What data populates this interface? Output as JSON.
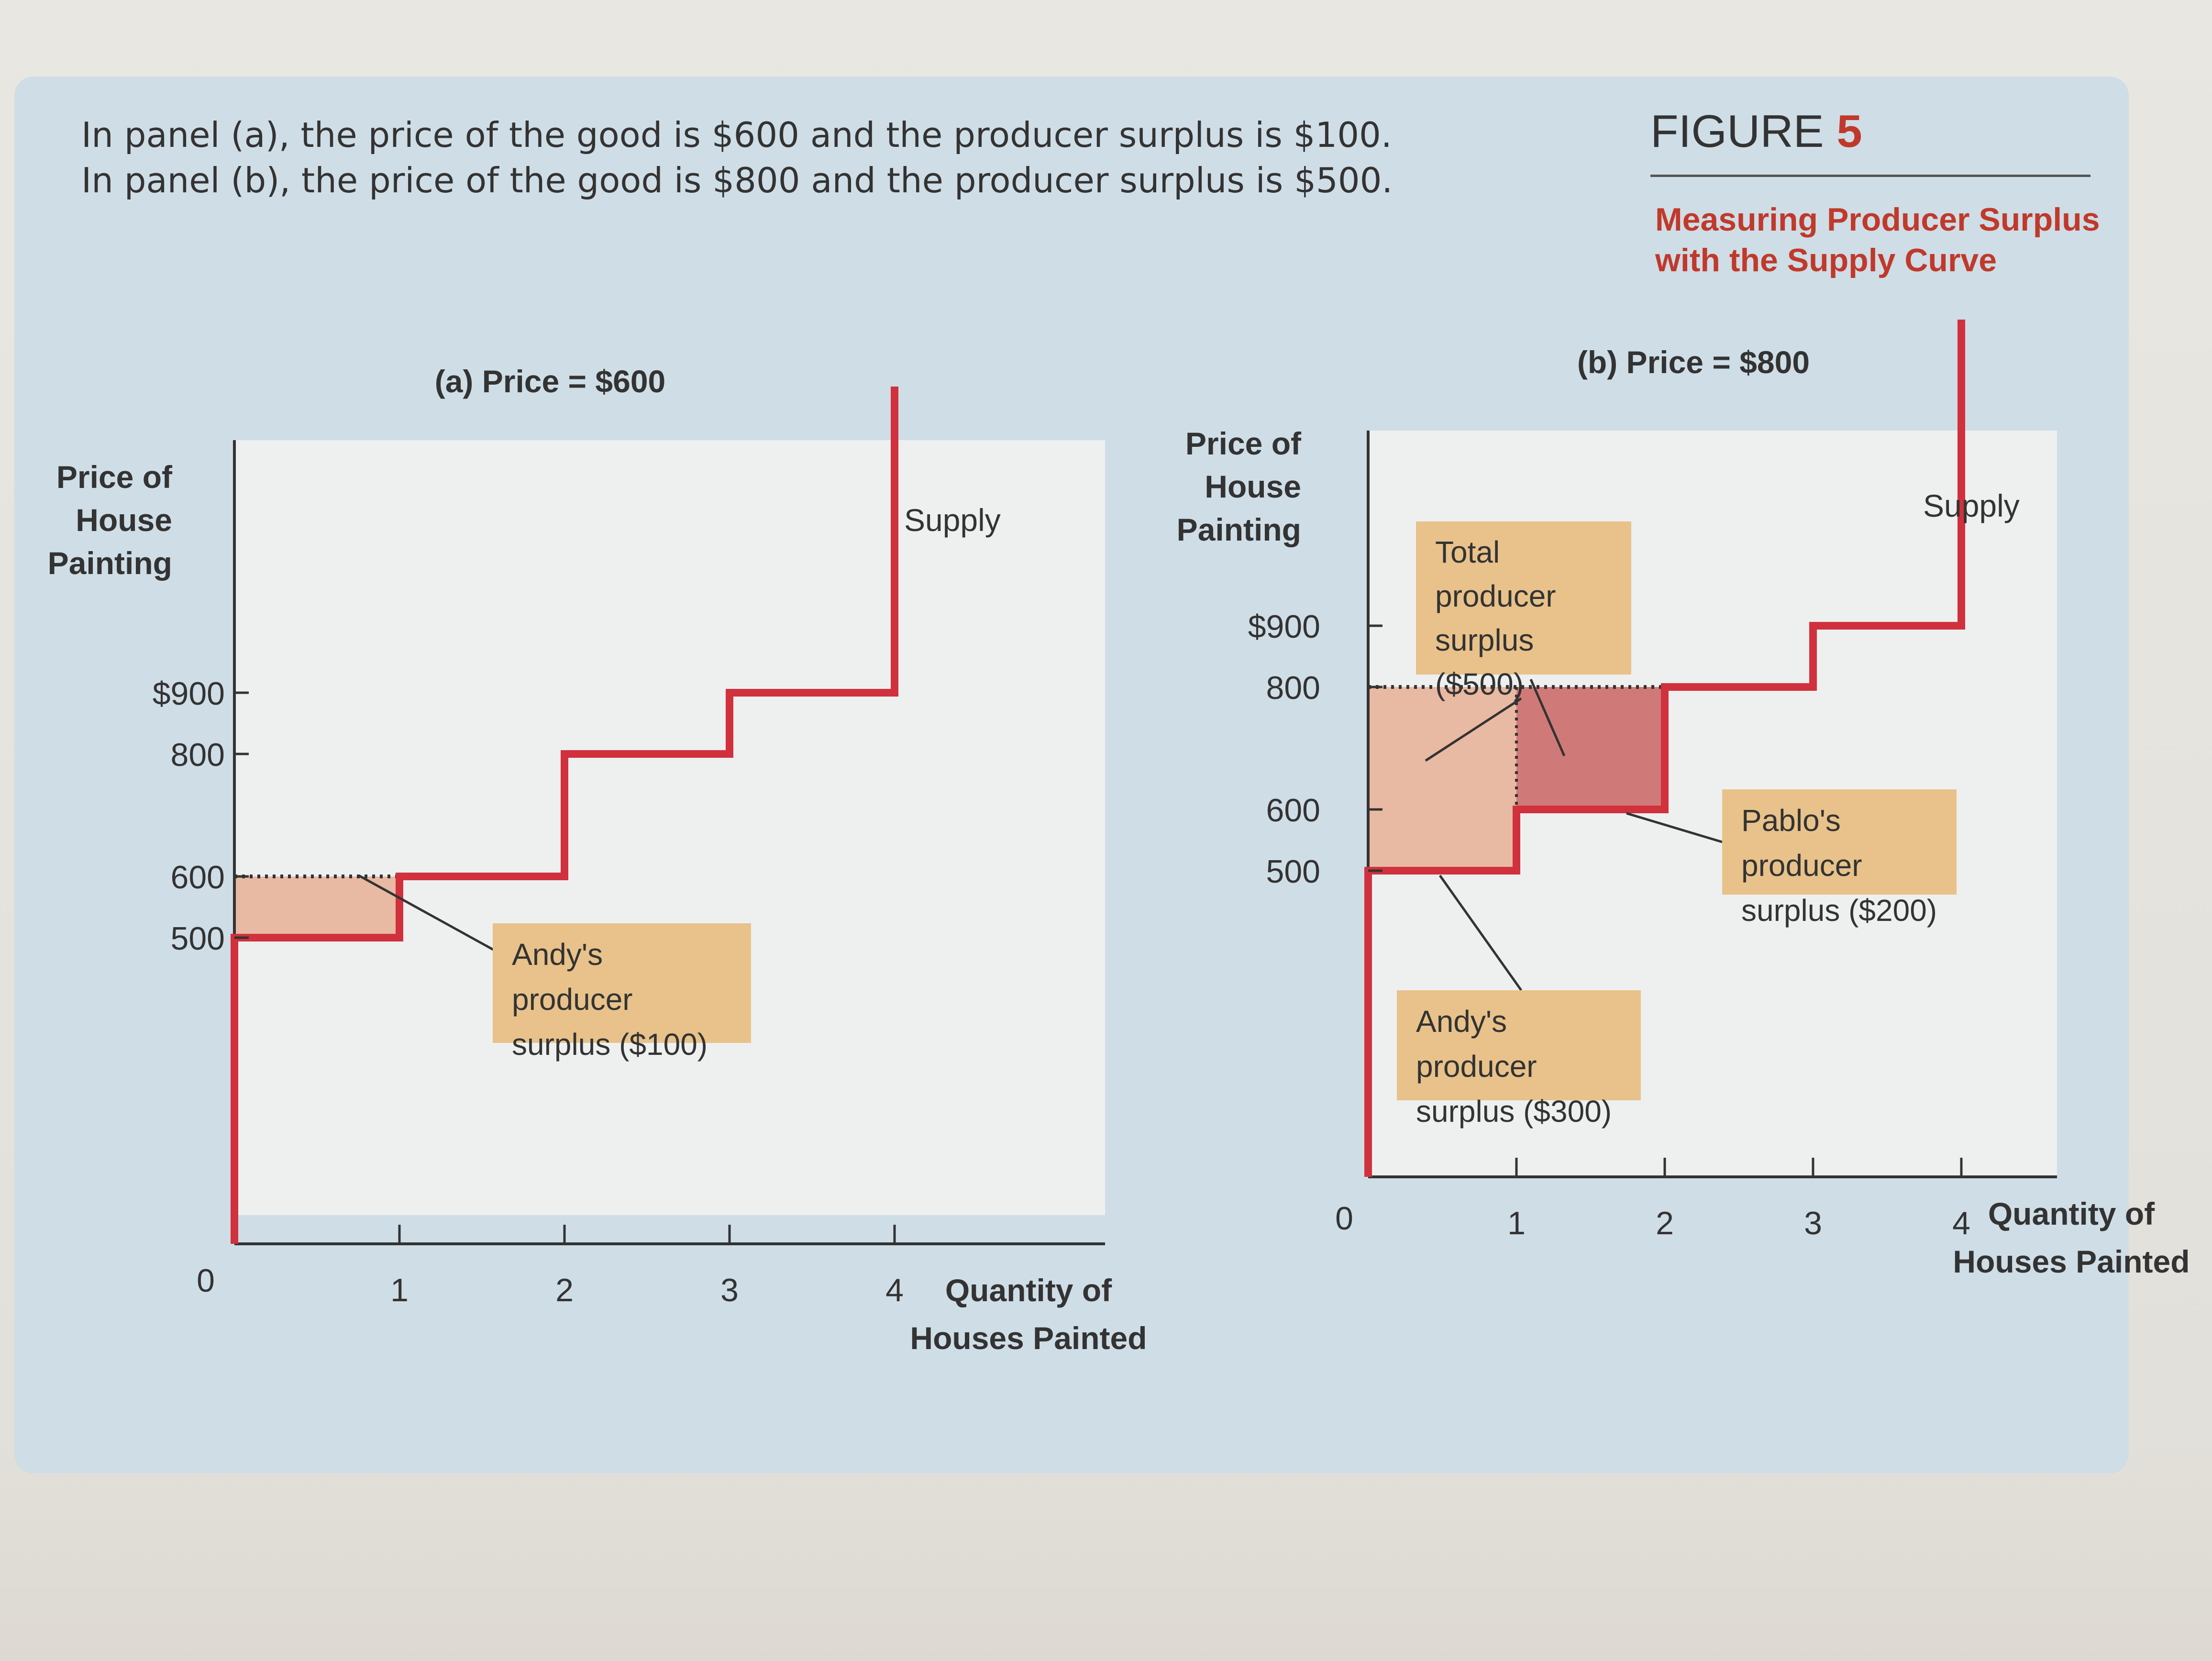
{
  "caption": {
    "line1": "In panel (a), the price of the good is $600 and the producer surplus is $100.",
    "line2": "In panel (b), the price of the good is $800 and the producer surplus is $500."
  },
  "figure": {
    "label": "FIGURE",
    "number": "5",
    "title_line1": "Measuring Producer Surplus",
    "title_line2": "with the Supply Curve"
  },
  "colors": {
    "supply_line": "#d0313d",
    "surplus_light": "#e8b9a3",
    "surplus_dark": "#cf7a78",
    "label_box": "#e8c28a",
    "panel_bg": "#cfdde6",
    "plot_bg": "#eef0f0"
  },
  "chart_data": [
    {
      "type": "line",
      "title": "(a) Price = $600",
      "xlabel": "Quantity of Houses Painted",
      "ylabel": "Price of House Painting",
      "x_ticks": [
        "0",
        "1",
        "2",
        "3",
        "4"
      ],
      "y_ticks": [
        "500",
        "600",
        "800",
        "$900"
      ],
      "y_tick_values": [
        500,
        600,
        800,
        900
      ],
      "xlim": [
        0,
        5
      ],
      "ylim": [
        0,
        1500
      ],
      "series": [
        {
          "name": "Supply",
          "steps": [
            {
              "x_from": 0,
              "x_to": 1,
              "price": 500
            },
            {
              "x_from": 1,
              "x_to": 2,
              "price": 600
            },
            {
              "x_from": 2,
              "x_to": 3,
              "price": 800
            },
            {
              "x_from": 3,
              "x_to": 4,
              "price": 900
            }
          ]
        }
      ],
      "price_line": 600,
      "surplus_regions": [
        {
          "x_from": 0,
          "x_to": 1,
          "y_from": 500,
          "y_to": 600,
          "shade": "light"
        }
      ],
      "annotations": [
        {
          "line1": "Andy's producer",
          "line2": "surplus ($100)"
        }
      ]
    },
    {
      "type": "line",
      "title": "(b) Price = $800",
      "xlabel": "Quantity of Houses Painted",
      "ylabel": "Price of House Painting",
      "x_ticks": [
        "0",
        "1",
        "2",
        "3",
        "4"
      ],
      "y_ticks": [
        "500",
        "600",
        "800",
        "$900"
      ],
      "y_tick_values": [
        500,
        600,
        800,
        900
      ],
      "xlim": [
        0,
        5
      ],
      "ylim": [
        0,
        1500
      ],
      "series": [
        {
          "name": "Supply",
          "steps": [
            {
              "x_from": 0,
              "x_to": 1,
              "price": 500
            },
            {
              "x_from": 1,
              "x_to": 2,
              "price": 600
            },
            {
              "x_from": 2,
              "x_to": 3,
              "price": 800
            },
            {
              "x_from": 3,
              "x_to": 4,
              "price": 900
            }
          ]
        }
      ],
      "price_line": 800,
      "surplus_regions": [
        {
          "x_from": 0,
          "x_to": 1,
          "y_from": 500,
          "y_to": 600,
          "shade": "light"
        },
        {
          "x_from": 0,
          "x_to": 1,
          "y_from": 600,
          "y_to": 800,
          "shade": "light"
        },
        {
          "x_from": 1,
          "x_to": 2,
          "y_from": 600,
          "y_to": 800,
          "shade": "dark"
        }
      ],
      "annotations": [
        {
          "line1": "Total",
          "line2": "producer",
          "line3": "surplus ($500)"
        },
        {
          "line1": "Pablo's producer",
          "line2": "surplus ($200)"
        },
        {
          "line1": "Andy's producer",
          "line2": "surplus ($300)"
        }
      ]
    }
  ]
}
